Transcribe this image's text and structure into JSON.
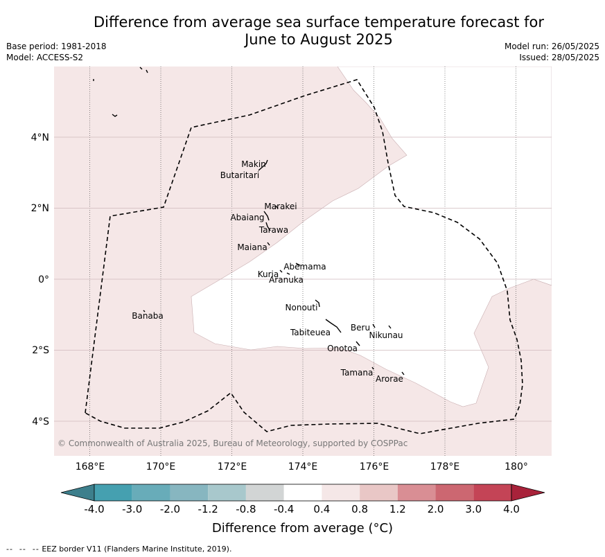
{
  "title_line1": "Difference from average sea surface temperature forecast for",
  "title_line2": "June to August 2025",
  "base_period": "Base period: 1981-2018",
  "model": "Model: ACCESS-S2",
  "model_run": "Model run: 26/05/2025",
  "issued": "Issued: 28/05/2025",
  "copyright": "© Commonwealth of Australia 2025, Bureau of Meteorology, supported by COSPPac",
  "x_ticks": [
    "168°E",
    "170°E",
    "172°E",
    "174°E",
    "176°E",
    "178°E",
    "180°"
  ],
  "y_ticks": [
    "4°N",
    "2°N",
    "0°",
    "2°S",
    "4°S"
  ],
  "islands": [
    "Makin",
    "Butaritari",
    "Marakei",
    "Abaiang",
    "Tarawa",
    "Maiana",
    "Abemama",
    "Kuria",
    "Aranuka",
    "Banaba",
    "Nonouti",
    "Tabiteuea",
    "Beru",
    "Nikunau",
    "Onotoa",
    "Tamana",
    "Arorae"
  ],
  "colorbar": {
    "ticks": [
      "-4.0",
      "-3.0",
      "-2.0",
      "-1.2",
      "-0.8",
      "-0.4",
      "0.4",
      "0.8",
      "1.2",
      "2.0",
      "3.0",
      "4.0"
    ],
    "colors": [
      "#45a0b0",
      "#68acb9",
      "#87b6c0",
      "#a8c8cc",
      "#d2d5d5",
      "#ffffff",
      "#f5e7e7",
      "#e9c7c6",
      "#d98e94",
      "#cc6771",
      "#c44456"
    ],
    "under_color": "#3d7f8c",
    "over_color": "#a8223a",
    "label": "Difference from average (°C)"
  },
  "legend_note": "EEZ border V11 (Flanders Marine Institute, 2019).",
  "map_colors": {
    "anomaly_0_4_to_0_8": "#f5e7e7",
    "neutral": "#ffffff",
    "gridline": "#cfb9bd"
  }
}
